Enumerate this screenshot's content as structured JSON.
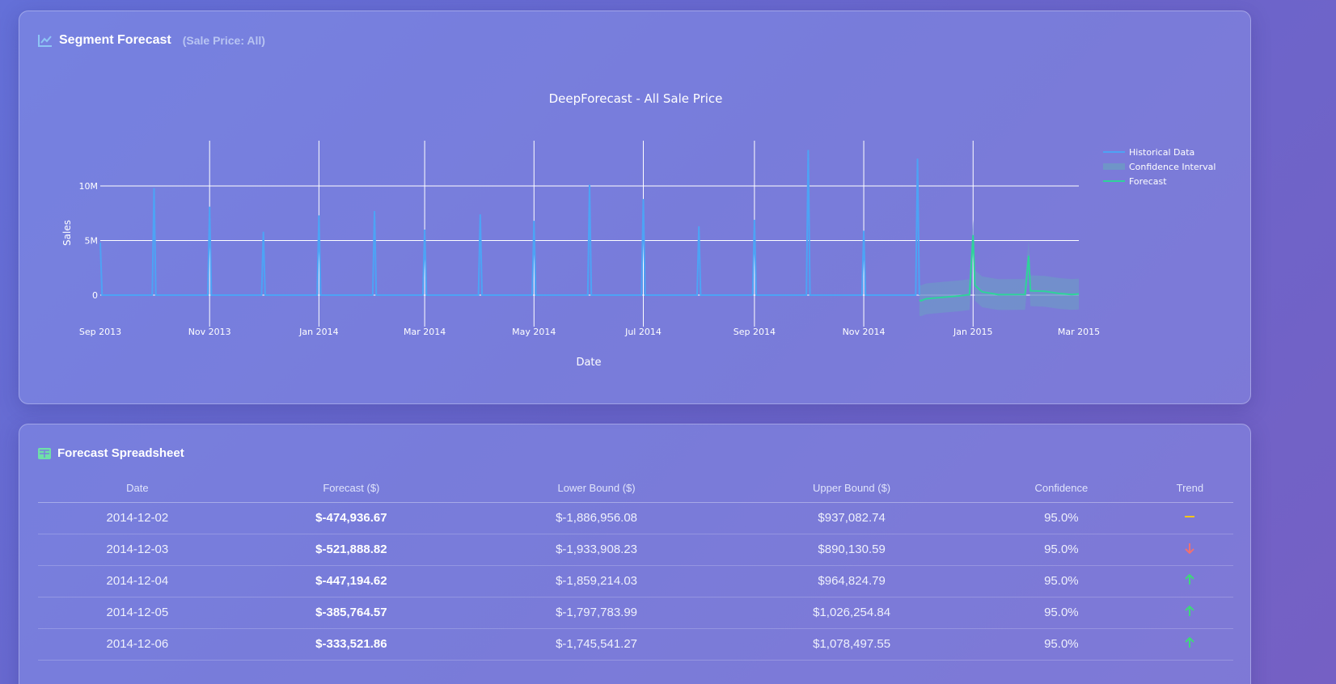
{
  "chart_card": {
    "title": "Segment Forecast",
    "subtitle": "(Sale Price: All)",
    "icon": "line-chart-icon"
  },
  "table_card": {
    "title": "Forecast Spreadsheet",
    "icon": "table-icon"
  },
  "chart_data": {
    "type": "line",
    "title": "DeepForecast - All Sale Price",
    "xlabel": "Date",
    "ylabel": "Sales",
    "xlim": [
      "2013-09-01",
      "2015-03-01"
    ],
    "ylim": [
      -2000000,
      15000000
    ],
    "xticks": [
      "Sep 2013",
      "Nov 2013",
      "Jan 2014",
      "Mar 2014",
      "May 2014",
      "Jul 2014",
      "Sep 2014",
      "Nov 2014",
      "Jan 2015",
      "Mar 2015"
    ],
    "xtick_dates": [
      "2013-09-01",
      "2013-11-01",
      "2014-01-01",
      "2014-03-01",
      "2014-05-01",
      "2014-07-01",
      "2014-09-01",
      "2014-11-01",
      "2015-01-01",
      "2015-03-01"
    ],
    "yticks": [
      {
        "v": 0,
        "label": "0"
      },
      {
        "v": 5000000,
        "label": "5M"
      },
      {
        "v": 10000000,
        "label": "10M"
      }
    ],
    "legend": {
      "placement": "top-right",
      "entries": [
        "Historical Data",
        "Confidence Interval",
        "Forecast"
      ]
    },
    "colors": {
      "historical": "#4da3f5",
      "ci": "#6f95c8",
      "forecast": "#2ed39a"
    },
    "historical_spikes": [
      [
        "2013-09-01",
        4800000
      ],
      [
        "2013-10-01",
        9800000
      ],
      [
        "2013-11-01",
        8100000
      ],
      [
        "2013-12-01",
        5800000
      ],
      [
        "2014-01-01",
        7300000
      ],
      [
        "2014-02-01",
        7700000
      ],
      [
        "2014-03-01",
        6000000
      ],
      [
        "2014-04-01",
        7400000
      ],
      [
        "2014-05-01",
        6800000
      ],
      [
        "2014-06-01",
        10100000
      ],
      [
        "2014-07-01",
        8800000
      ],
      [
        "2014-08-01",
        6300000
      ],
      [
        "2014-09-01",
        6900000
      ],
      [
        "2014-10-01",
        13300000
      ],
      [
        "2014-11-01",
        5900000
      ],
      [
        "2014-12-01",
        12500000
      ]
    ],
    "forecast": [
      [
        "2014-12-02",
        -474937
      ],
      [
        "2014-12-03",
        -521889
      ],
      [
        "2014-12-04",
        -447195
      ],
      [
        "2014-12-05",
        -385765
      ],
      [
        "2014-12-06",
        -333522
      ],
      [
        "2014-12-15",
        -200000
      ],
      [
        "2014-12-25",
        -60000
      ],
      [
        "2014-12-30",
        50000
      ],
      [
        "2015-01-01",
        5500000
      ],
      [
        "2015-01-02",
        900000
      ],
      [
        "2015-01-06",
        300000
      ],
      [
        "2015-01-15",
        50000
      ],
      [
        "2015-01-30",
        60000
      ],
      [
        "2015-02-01",
        3600000
      ],
      [
        "2015-02-02",
        400000
      ],
      [
        "2015-02-10",
        350000
      ],
      [
        "2015-02-18",
        150000
      ],
      [
        "2015-02-25",
        60000
      ],
      [
        "2015-03-01",
        100000
      ]
    ],
    "ci_halfwidth": 1412020
  },
  "table": {
    "headers": [
      "Date",
      "Forecast ($)",
      "Lower Bound ($)",
      "Upper Bound ($)",
      "Confidence",
      "Trend"
    ],
    "rows": [
      {
        "date": "2014-12-02",
        "forecast": "$-474,936.67",
        "lower": "$-1,886,956.08",
        "upper": "$937,082.74",
        "conf": "95.0%",
        "trend": "flat"
      },
      {
        "date": "2014-12-03",
        "forecast": "$-521,888.82",
        "lower": "$-1,933,908.23",
        "upper": "$890,130.59",
        "conf": "95.0%",
        "trend": "down"
      },
      {
        "date": "2014-12-04",
        "forecast": "$-447,194.62",
        "lower": "$-1,859,214.03",
        "upper": "$964,824.79",
        "conf": "95.0%",
        "trend": "up"
      },
      {
        "date": "2014-12-05",
        "forecast": "$-385,764.57",
        "lower": "$-1,797,783.99",
        "upper": "$1,026,254.84",
        "conf": "95.0%",
        "trend": "up"
      },
      {
        "date": "2014-12-06",
        "forecast": "$-333,521.86",
        "lower": "$-1,745,541.27",
        "upper": "$1,078,497.55",
        "conf": "95.0%",
        "trend": "up"
      }
    ]
  }
}
